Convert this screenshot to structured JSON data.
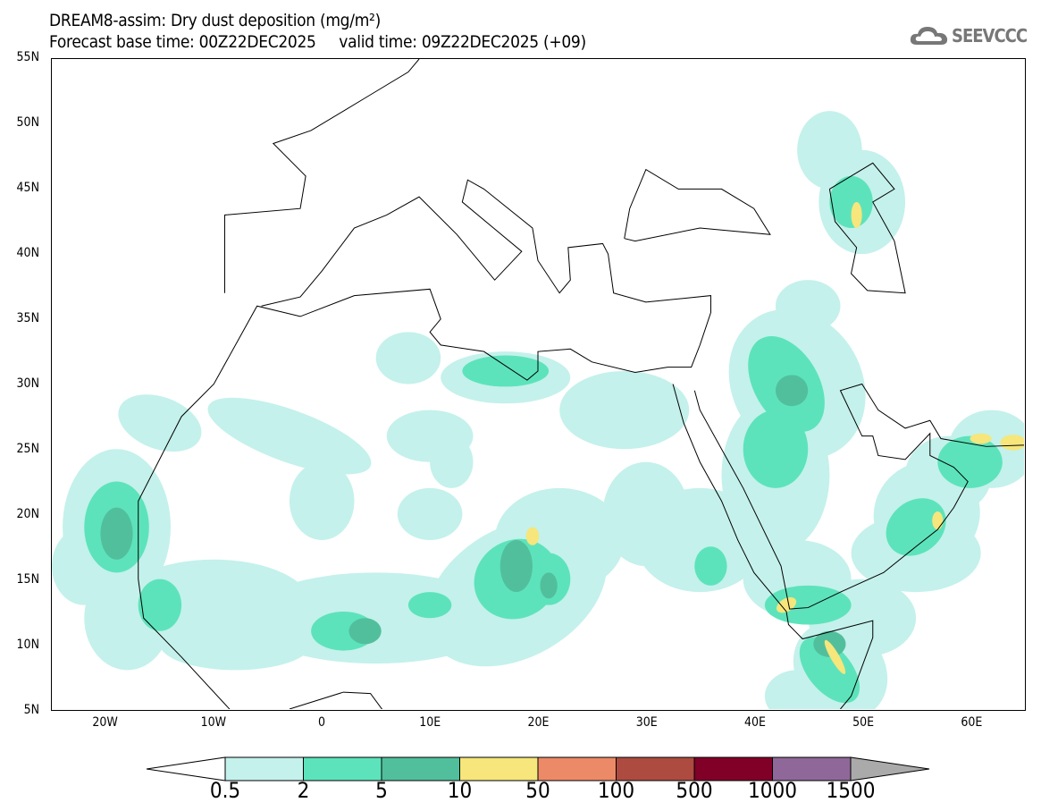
{
  "title": {
    "line1": "DREAM8-assim: Dry dust deposition (mg/m²)",
    "line2": "Forecast base time: 00Z22DEC2025     valid time: 09Z22DEC2025 (+09)"
  },
  "logo": {
    "text": "SEEVCCC",
    "icon": "cloud-icon"
  },
  "map": {
    "lon_range": [
      -25,
      65
    ],
    "lat_range": [
      5,
      55
    ],
    "lat_labels": [
      "5N",
      "10N",
      "15N",
      "20N",
      "25N",
      "30N",
      "35N",
      "40N",
      "45N",
      "50N",
      "55N"
    ],
    "lat_values": [
      5,
      10,
      15,
      20,
      25,
      30,
      35,
      40,
      45,
      50,
      55
    ],
    "lon_labels": [
      "20W",
      "10W",
      "0",
      "10E",
      "20E",
      "30E",
      "40E",
      "50E",
      "60E"
    ],
    "lon_values": [
      -20,
      -10,
      0,
      10,
      20,
      30,
      40,
      50,
      60
    ]
  },
  "colorbar": {
    "labels": [
      "0.5",
      "2",
      "5",
      "10",
      "50",
      "100",
      "500",
      "1000",
      "1500"
    ],
    "colors": [
      "#c4f1eb",
      "#5de3bb",
      "#52bf9c",
      "#f6e67b",
      "#ec8a67",
      "#ad4b41",
      "#800028",
      "#8f6899"
    ],
    "under_color": "#ffffff",
    "over_color": "#aaaaaa"
  }
}
